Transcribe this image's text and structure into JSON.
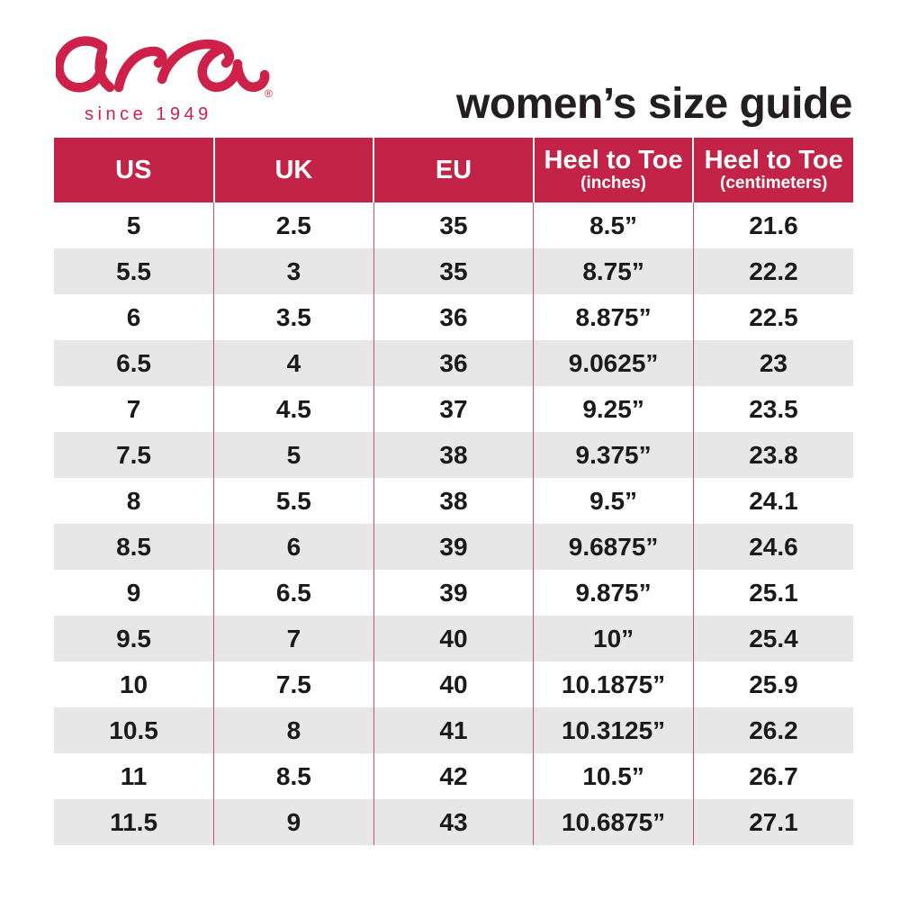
{
  "brand": {
    "logo_text": "ara",
    "registered_mark": "®",
    "tagline": "since 1949"
  },
  "header": {
    "title": "women’s size guide"
  },
  "colors": {
    "brand_red": "#ce2149",
    "header_bg": "#c32347",
    "header_text": "#ffffff",
    "row_stripe": "#e7e7e7",
    "divider_pink": "#dd4a66",
    "title_black": "#231f20",
    "cell_text": "#1a1a1a"
  },
  "chart_data": {
    "type": "table",
    "title": "women’s size guide",
    "columns": [
      {
        "label": "US",
        "sub": ""
      },
      {
        "label": "UK",
        "sub": ""
      },
      {
        "label": "EU",
        "sub": ""
      },
      {
        "label": "Heel to Toe",
        "sub": "(inches)"
      },
      {
        "label": "Heel to Toe",
        "sub": "(centimeters)"
      }
    ],
    "rows": [
      [
        "5",
        "2.5",
        "35",
        "8.5”",
        "21.6"
      ],
      [
        "5.5",
        "3",
        "35",
        "8.75”",
        "22.2"
      ],
      [
        "6",
        "3.5",
        "36",
        "8.875”",
        "22.5"
      ],
      [
        "6.5",
        "4",
        "36",
        "9.0625”",
        "23"
      ],
      [
        "7",
        "4.5",
        "37",
        "9.25”",
        "23.5"
      ],
      [
        "7.5",
        "5",
        "38",
        "9.375”",
        "23.8"
      ],
      [
        "8",
        "5.5",
        "38",
        "9.5”",
        "24.1"
      ],
      [
        "8.5",
        "6",
        "39",
        "9.6875”",
        "24.6"
      ],
      [
        "9",
        "6.5",
        "39",
        "9.875”",
        "25.1"
      ],
      [
        "9.5",
        "7",
        "40",
        "10”",
        "25.4"
      ],
      [
        "10",
        "7.5",
        "40",
        "10.1875”",
        "25.9"
      ],
      [
        "10.5",
        "8",
        "41",
        "10.3125”",
        "26.2"
      ],
      [
        "11",
        "8.5",
        "42",
        "10.5”",
        "26.7"
      ],
      [
        "11.5",
        "9",
        "43",
        "10.6875”",
        "27.1"
      ]
    ]
  }
}
